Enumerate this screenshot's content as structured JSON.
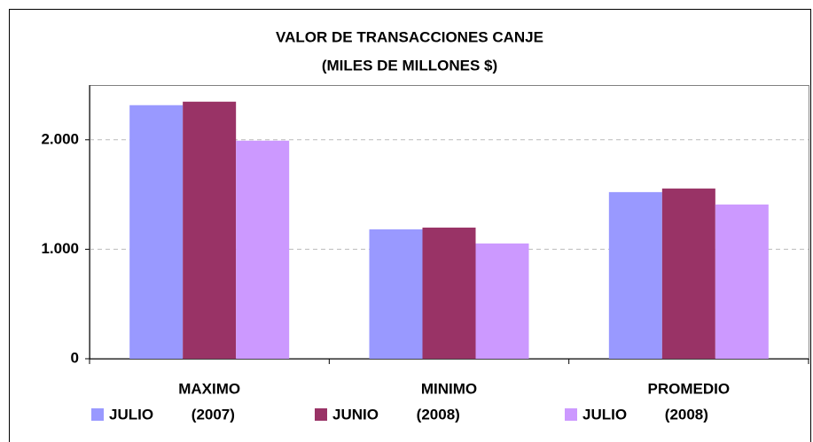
{
  "chart_data": {
    "type": "bar",
    "title": "VALOR DE TRANSACCIONES CANJE",
    "subtitle": "(MILES DE MILLONES $)",
    "categories": [
      "MAXIMO",
      "MINIMO",
      "PROMEDIO"
    ],
    "series": [
      {
        "name": "JULIO (2007)",
        "color": "#9999ff",
        "values": [
          2316,
          1182,
          1522
        ]
      },
      {
        "name": "JUNIO (2008)",
        "color": "#993366",
        "values": [
          2348,
          1198,
          1555
        ]
      },
      {
        "name": "JULIO (2008)",
        "color": "#cc99ff",
        "values": [
          1992,
          1053,
          1409
        ]
      }
    ],
    "ylim": [
      0,
      2500
    ],
    "yticks": [
      0,
      {
        "value": 1000,
        "label": "1.000"
      },
      {
        "value": 2000,
        "label": "2.000"
      }
    ],
    "grid": true,
    "legend": "bottom"
  }
}
